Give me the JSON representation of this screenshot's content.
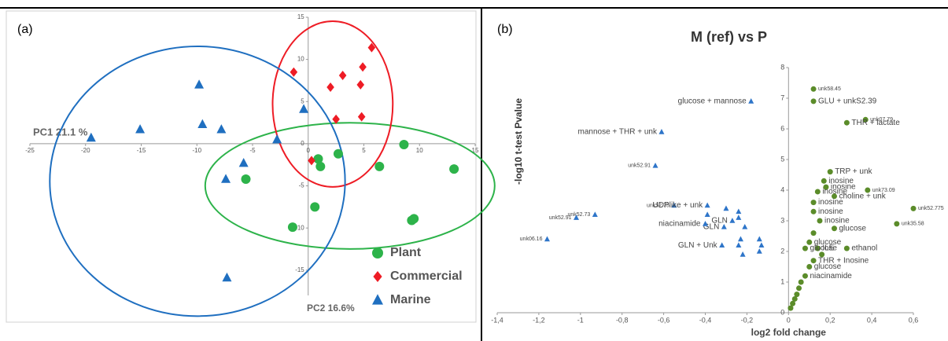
{
  "chart_data": [
    {
      "type": "scatter",
      "panel_label": "(a)",
      "xlabel": "PC1 21.1 %",
      "ylabel": "PC2  16.6%",
      "xlim": [
        -25,
        15
      ],
      "xticks": [
        -25,
        -20,
        -15,
        -10,
        -5,
        0,
        5,
        10,
        15
      ],
      "ylim": [
        -18,
        15
      ],
      "yticks": [
        -15,
        -10,
        -5,
        0,
        5,
        10,
        15
      ],
      "ellipses": true,
      "legend": "lower right",
      "series": [
        {
          "name": "Plant",
          "color": "#2db34a",
          "marker": "circle",
          "x": [
            -5.6,
            0.9,
            1.1,
            2.7,
            6.4,
            8.6,
            13.1,
            0.6,
            9.3,
            9.5,
            -1.4
          ],
          "values": [
            -4.2,
            -1.8,
            -2.7,
            -1.2,
            -2.7,
            -0.1,
            -3.0,
            -7.5,
            -9.1,
            -8.9,
            -9.9
          ]
        },
        {
          "name": "Commercial",
          "color": "#ee1c25",
          "marker": "diamond",
          "x": [
            5.7,
            -1.3,
            4.9,
            3.1,
            2.0,
            4.7,
            2.5,
            4.8,
            0.3
          ],
          "values": [
            11.4,
            8.5,
            9.1,
            8.1,
            6.7,
            7.0,
            2.9,
            3.2,
            -2.0
          ]
        },
        {
          "name": "Marine",
          "color": "#1f6fc0",
          "marker": "triangle",
          "x": [
            -19.5,
            -15.1,
            -9.8,
            -9.5,
            -7.8,
            -2.8,
            -0.4,
            -5.8,
            -7.4,
            -7.3
          ],
          "values": [
            0.7,
            1.7,
            7.0,
            2.3,
            1.7,
            0.5,
            4.1,
            -2.3,
            -4.2,
            -15.9
          ]
        }
      ]
    },
    {
      "type": "scatter",
      "panel_label": "(b)",
      "title": "M (ref) vs P",
      "xlabel": "log2 fold change",
      "ylabel": "-log10 t-test Pvalue",
      "xlim": [
        -1.4,
        0.6
      ],
      "xticks": [
        {
          "value": -1.4,
          "label": "-1,4"
        },
        {
          "value": -1.2,
          "label": "-1,2"
        },
        -1,
        {
          "value": -0.8,
          "label": "-0,8"
        },
        {
          "value": -0.6,
          "label": "-0,6"
        },
        {
          "value": -0.4,
          "label": "-0,4"
        },
        {
          "value": -0.2,
          "label": "-0,2"
        },
        0,
        {
          "value": 0.2,
          "label": "0,2"
        },
        {
          "value": 0.4,
          "label": "0,4"
        },
        {
          "value": 0.6,
          "label": "0,6"
        }
      ],
      "ylim": [
        0,
        8
      ],
      "yticks": [
        0,
        1,
        2,
        3,
        4,
        5,
        6,
        7,
        8
      ],
      "series": [
        {
          "color": "#2e75c9",
          "marker": "triangle",
          "x": [
            -0.18,
            -0.61,
            -0.64,
            -0.93,
            -1.02,
            -1.16,
            -0.55,
            -0.39,
            -0.3,
            -0.24,
            -0.39,
            -0.27,
            -0.24,
            -0.21,
            -0.31,
            -0.23,
            -0.32,
            -0.24,
            -0.14,
            -0.13,
            -0.14,
            -0.22,
            -0.4
          ],
          "values": [
            6.9,
            5.9,
            4.8,
            3.2,
            3.1,
            2.4,
            3.5,
            3.5,
            3.4,
            3.3,
            3.2,
            3.0,
            3.1,
            2.8,
            2.8,
            2.4,
            2.2,
            2.2,
            2.4,
            2.2,
            2.0,
            1.9,
            2.9
          ],
          "labels": [
            "glucose + mannose",
            "mannose + THR + unk",
            "unk52.91",
            "unk52.73",
            "unk52.91",
            "unk06.16",
            "unk52.75",
            "UDPlike + unk",
            null,
            null,
            null,
            "GLN",
            null,
            null,
            "GLN",
            null,
            "GLN + Unk",
            null,
            null,
            null,
            null,
            null,
            "niacinamide"
          ]
        },
        {
          "color": "#5b8c2a",
          "marker": "circle",
          "x": [
            0.12,
            0.12,
            0.37,
            0.28,
            0.2,
            0.17,
            0.18,
            0.38,
            0.14,
            0.22,
            0.12,
            0.6,
            0.12,
            0.15,
            0.52,
            0.22,
            0.12,
            0.1,
            0.14,
            0.28,
            0.08,
            0.16,
            0.12,
            0.1,
            0.08,
            0.06,
            0.05,
            0.04,
            0.03,
            0.02,
            0.01
          ],
          "values": [
            7.3,
            6.9,
            6.3,
            6.2,
            4.6,
            4.3,
            4.1,
            4.0,
            3.95,
            3.8,
            3.6,
            3.4,
            3.3,
            3.0,
            2.9,
            2.75,
            2.6,
            2.3,
            2.1,
            2.1,
            2.1,
            1.9,
            1.7,
            1.5,
            1.2,
            1.0,
            0.8,
            0.6,
            0.45,
            0.3,
            0.15
          ],
          "labels": [
            "unk58.45",
            "GLU + unkS2.39",
            "unk07.79",
            "THR + lactate",
            "TRP + unk",
            "inosine",
            "inosine",
            "unk73.09",
            "inosine",
            "choline + unk",
            "inosine",
            "unk52.775",
            "inosine",
            "inosine",
            "unk35.58",
            "glucose",
            null,
            "glucose",
            "ILE",
            "ethanol",
            "glucose",
            null,
            "THR + Inosine",
            "glucose",
            "niacinamide",
            null,
            null,
            null,
            null,
            null,
            null
          ]
        }
      ]
    }
  ]
}
